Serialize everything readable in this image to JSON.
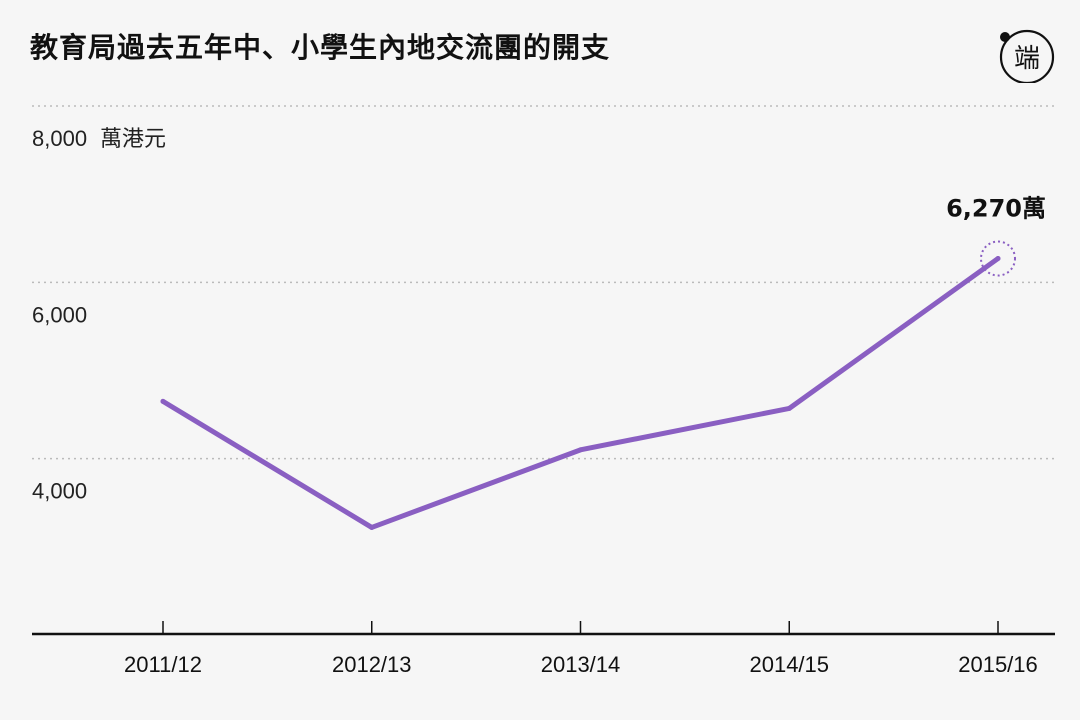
{
  "title": "教育局過去五年中、小學生內地交流團的開支",
  "logo": {
    "icon": "initium-logo-icon",
    "text": "端"
  },
  "colors": {
    "line": "#8a5fc2",
    "text": "#111111",
    "grid": "#bbbbbb",
    "background": "#f6f6f6"
  },
  "chart_data": {
    "type": "line",
    "title": "教育局過去五年中、小學生內地交流團的開支",
    "xlabel": "",
    "ylabel": "",
    "y_unit": "萬港元",
    "categories": [
      "2011/12",
      "2012/13",
      "2013/14",
      "2014/15",
      "2015/16"
    ],
    "series": [
      {
        "values": [
          4650,
          3220,
          4100,
          4570,
          6270
        ]
      }
    ],
    "ylim": [
      2000,
      8000
    ],
    "yticks": [
      {
        "value": 8000,
        "label": "8,000"
      },
      {
        "value": 6000,
        "label": "6,000"
      },
      {
        "value": 4000,
        "label": "4,000"
      }
    ],
    "grid": true,
    "annotation": {
      "category": "2015/16",
      "label": "6,270萬"
    }
  }
}
